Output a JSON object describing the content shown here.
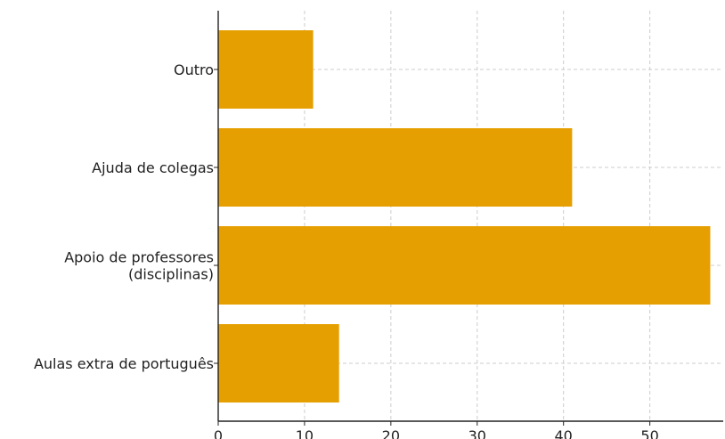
{
  "chart_data": {
    "type": "bar",
    "orientation": "horizontal",
    "title": "",
    "xlabel": "",
    "ylabel": "",
    "categories": [
      [
        "Aulas extra de português"
      ],
      [
        "Apoio de professores",
        "(disciplinas)"
      ],
      [
        "Ajuda de colegas"
      ],
      [
        "Outro"
      ]
    ],
    "values": [
      14,
      57,
      41,
      11
    ],
    "xlim": [
      0,
      58.5
    ],
    "xticks": [
      0,
      10,
      20,
      30,
      40,
      50
    ],
    "grid": true,
    "bar_color": "#E69F00"
  }
}
